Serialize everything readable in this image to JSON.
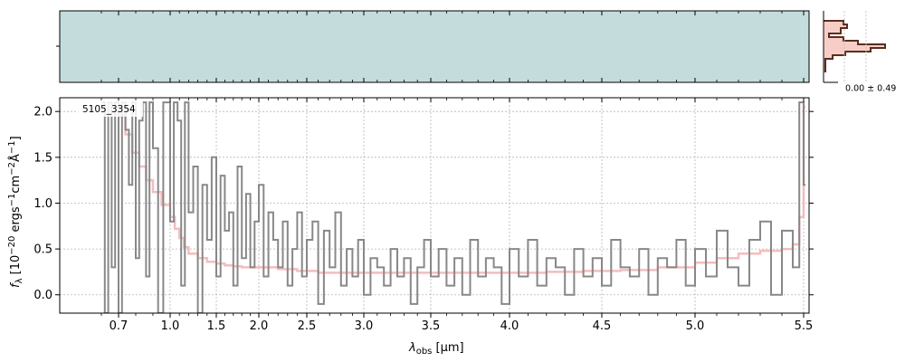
{
  "chart_data": {
    "type": "line",
    "object_label": "5105_3354",
    "xlabel_main": "λ",
    "xlabel_sub": "obs",
    "xlabel_unit": " [μm]",
    "ylabel": "f_λ [10^-20 ergs^-1 cm^-2 Å^-1]",
    "ylabel_parts": {
      "f": "f",
      "sub": "λ",
      "open": " [10",
      "exp1": "−20",
      "mid1": " ergs",
      "exp2": "−1",
      "mid2": "cm",
      "exp3": "−2",
      "mid3": "Å",
      "exp4": "−1",
      "close": "]"
    },
    "x_ticks": [
      "0.7",
      "1.0",
      "1.5",
      "2.0",
      "2.5",
      "3.0",
      "3.5",
      "4.0",
      "4.5",
      "5.0",
      "5.5"
    ],
    "x_tick_values": [
      0.7,
      1.0,
      1.5,
      2.0,
      2.5,
      3.0,
      3.5,
      4.0,
      4.5,
      5.0,
      5.5
    ],
    "y_ticks": [
      "0.0",
      "0.5",
      "1.0",
      "1.5",
      "2.0"
    ],
    "y_tick_values": [
      0.0,
      0.5,
      1.0,
      1.5,
      2.0
    ],
    "ylim": [
      -0.2,
      2.15
    ],
    "xlim": [
      0.6,
      5.52
    ],
    "grid": true,
    "colors": {
      "data": "#888888",
      "model": "#f4b6b6",
      "model_dark": "#c8848a",
      "sky2d": "#c5dcdc",
      "hist_line": "#5a2e1e",
      "hist_fill": "#f6c9c1"
    },
    "series": [
      {
        "role": "data",
        "x": [
          0.6,
          0.62,
          0.64,
          0.66,
          0.68,
          0.7,
          0.72,
          0.74,
          0.76,
          0.78,
          0.8,
          0.82,
          0.84,
          0.86,
          0.88,
          0.9,
          0.93,
          0.96,
          1.0,
          1.04,
          1.08,
          1.12,
          1.16,
          1.2,
          1.25,
          1.3,
          1.35,
          1.4,
          1.45,
          1.5,
          1.55,
          1.6,
          1.65,
          1.7,
          1.75,
          1.8,
          1.85,
          1.9,
          1.95,
          2.0,
          2.05,
          2.1,
          2.15,
          2.2,
          2.25,
          2.3,
          2.35,
          2.4,
          2.45,
          2.5,
          2.55,
          2.6,
          2.65,
          2.7,
          2.75,
          2.8,
          2.85,
          2.9,
          2.95,
          3.0,
          3.05,
          3.1,
          3.15,
          3.2,
          3.25,
          3.3,
          3.35,
          3.4,
          3.45,
          3.5,
          3.55,
          3.6,
          3.65,
          3.7,
          3.75,
          3.8,
          3.85,
          3.9,
          3.95,
          4.0,
          4.05,
          4.1,
          4.15,
          4.2,
          4.25,
          4.3,
          4.35,
          4.4,
          4.45,
          4.5,
          4.55,
          4.6,
          4.65,
          4.7,
          4.75,
          4.8,
          4.85,
          4.9,
          4.95,
          5.0,
          5.05,
          5.1,
          5.15,
          5.2,
          5.25,
          5.3,
          5.35,
          5.4,
          5.45,
          5.48,
          5.5
        ],
        "y": [
          2.1,
          -0.2,
          2.1,
          0.3,
          2.1,
          -0.2,
          2.1,
          1.8,
          1.2,
          2.1,
          0.4,
          1.9,
          2.1,
          0.2,
          2.1,
          1.6,
          -0.2,
          2.1,
          0.8,
          2.1,
          1.9,
          0.1,
          2.1,
          0.9,
          1.4,
          -0.2,
          1.2,
          0.6,
          1.5,
          0.2,
          1.3,
          0.7,
          0.9,
          0.1,
          1.4,
          0.4,
          1.1,
          0.3,
          0.8,
          1.2,
          0.2,
          0.9,
          0.6,
          0.3,
          0.8,
          0.1,
          0.5,
          0.9,
          0.2,
          0.6,
          0.8,
          -0.1,
          0.7,
          0.3,
          0.9,
          0.1,
          0.5,
          0.2,
          0.6,
          0.0,
          0.4,
          0.3,
          0.1,
          0.5,
          0.2,
          0.4,
          -0.1,
          0.3,
          0.6,
          0.2,
          0.5,
          0.1,
          0.4,
          0.0,
          0.6,
          0.2,
          0.4,
          0.3,
          -0.1,
          0.5,
          0.2,
          0.6,
          0.1,
          0.4,
          0.3,
          0.0,
          0.5,
          0.2,
          0.4,
          0.1,
          0.6,
          0.3,
          0.2,
          0.5,
          0.0,
          0.4,
          0.3,
          0.6,
          0.1,
          0.5,
          0.2,
          0.7,
          0.3,
          0.1,
          0.6,
          0.8,
          0.0,
          0.7,
          0.3,
          2.1,
          1.2
        ]
      },
      {
        "role": "model",
        "x": [
          0.7,
          0.74,
          0.78,
          0.82,
          0.86,
          0.9,
          0.95,
          1.0,
          1.05,
          1.1,
          1.15,
          1.2,
          1.3,
          1.4,
          1.5,
          1.6,
          1.7,
          1.8,
          1.9,
          2.0,
          2.2,
          2.4,
          2.6,
          2.8,
          3.0,
          3.2,
          3.4,
          3.6,
          3.8,
          4.0,
          4.2,
          4.4,
          4.6,
          4.8,
          5.0,
          5.1,
          5.2,
          5.3,
          5.4,
          5.45,
          5.48,
          5.5
        ],
        "y": [
          1.95,
          1.75,
          1.55,
          1.4,
          1.25,
          1.12,
          0.98,
          0.85,
          0.72,
          0.62,
          0.52,
          0.45,
          0.4,
          0.36,
          0.34,
          0.32,
          0.31,
          0.3,
          0.3,
          0.3,
          0.28,
          0.26,
          0.24,
          0.24,
          0.24,
          0.24,
          0.24,
          0.24,
          0.24,
          0.24,
          0.25,
          0.26,
          0.27,
          0.3,
          0.35,
          0.4,
          0.45,
          0.48,
          0.5,
          0.55,
          0.85,
          2.05
        ]
      }
    ],
    "histogram_label": "0.00 ± 0.49"
  }
}
